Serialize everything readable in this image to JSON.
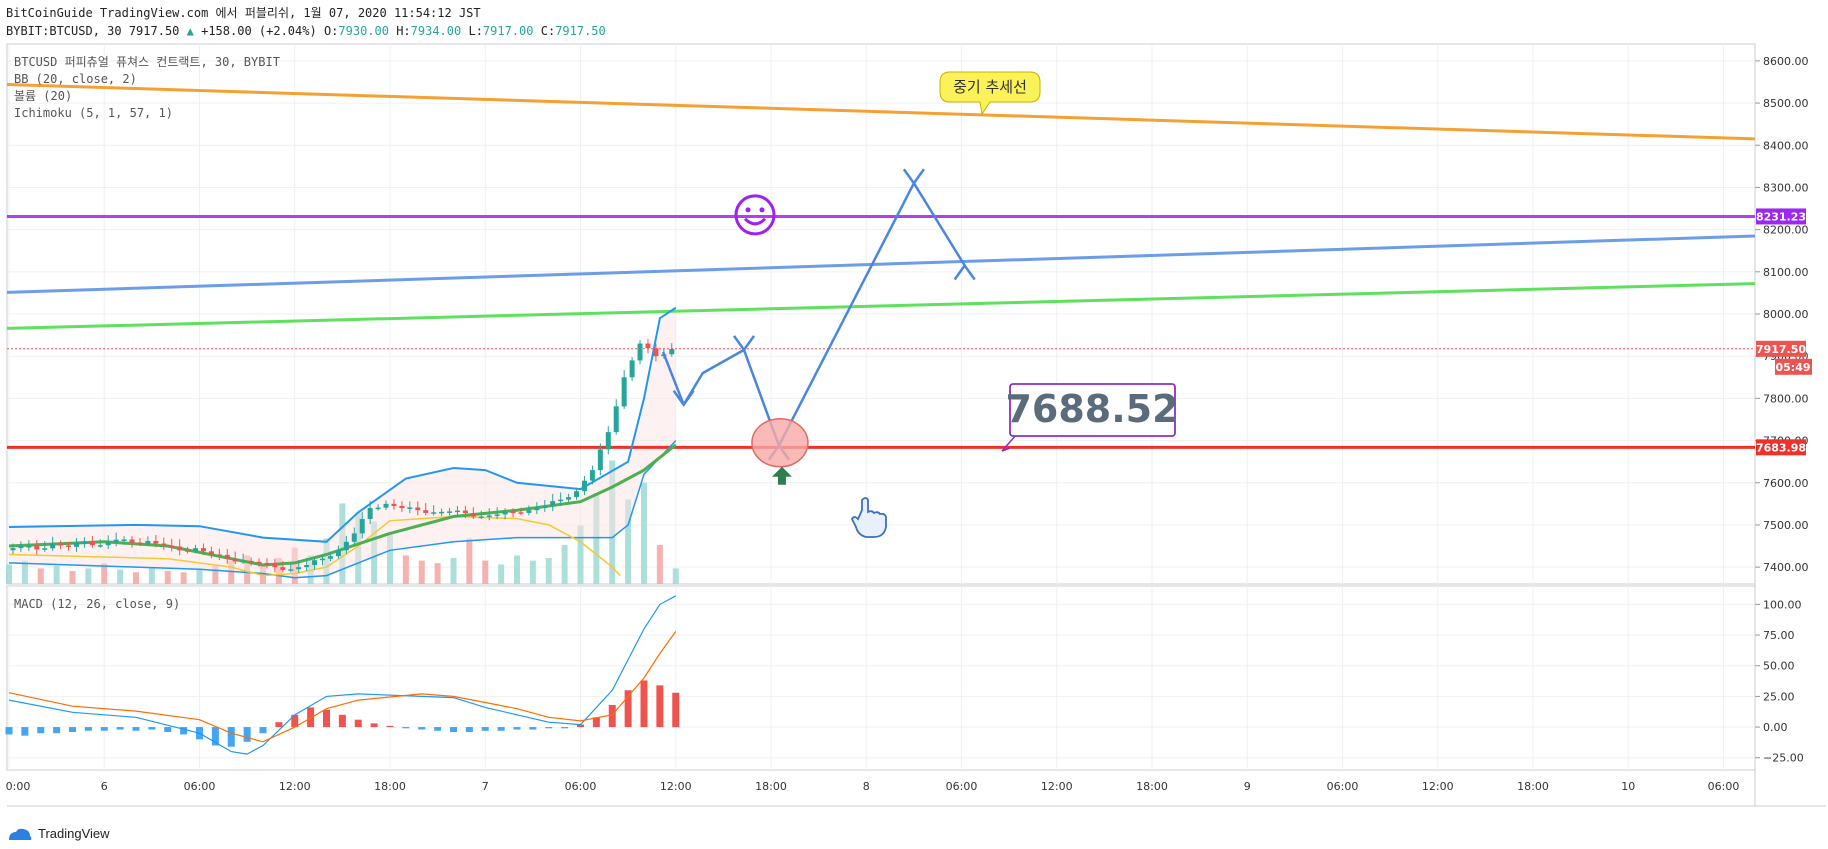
{
  "header": {
    "line1": "BitCoinGuide TradingView.com 에서 퍼블리쉬, 1월 07, 2020 11:54:12 JST",
    "symbol": "BYBIT:BTCUSD, 30",
    "last": "7917.50",
    "change_arrow": "▲",
    "change": "+158.00 (+2.04%)",
    "o_label": "O:",
    "o": "7930.00",
    "h_label": "H:",
    "h": "7934.00",
    "l_label": "L:",
    "l": "7917.00",
    "c_label": "C:",
    "c": "7917.50"
  },
  "legend": {
    "title": "BTCUSD 퍼피츄얼 퓨쳐스 컨트랙트, 30, BYBIT",
    "bb": "BB (20, close, 2)",
    "volume": "볼륨 (20)",
    "ichimoku": "Ichimoku (5, 1, 57, 1)",
    "macd": "MACD (12, 26, close, 9)"
  },
  "annotations": {
    "trend_label": "중기 추세선",
    "price_callout": "7688.52",
    "smiley_icon": "smiley-face",
    "hand_icon": "pointing-hand"
  },
  "badges": {
    "purple_level": "8231.23",
    "last_price": "7917.50",
    "countdown": "05:49",
    "red_level": "7683.98"
  },
  "footer": {
    "brand": "TradingView"
  },
  "colors": {
    "up": "#26a69a",
    "down": "#ef5350",
    "bb": "#2196f3",
    "ma": "#4caf50",
    "trend_orange": "#f5a033",
    "trend_purple": "#b040f0",
    "trend_blue": "#6d9de6",
    "trend_green": "#5fe05f",
    "support_red": "#f0302a",
    "arrow": "#4a86e0",
    "macd": "#2196f3",
    "signal": "#ff6d00"
  },
  "chart_data": [
    {
      "type": "candlestick",
      "title": "BTCUSD 퍼피츄얼 퓨쳐스 컨트랙트, 30, BYBIT",
      "ylim": [
        7360,
        8640
      ],
      "y_ticks": [
        8600,
        8500,
        8400,
        8300,
        8200,
        8100,
        8000,
        7900,
        7800,
        7700,
        7600,
        7500,
        7400
      ],
      "y_tick_labels": [
        "8600.00",
        "8500.00",
        "8400.00",
        "8300.00",
        "8200.00",
        "8100.00",
        "8000.00",
        "7900.00",
        "7800.00",
        "7700.00",
        "7600.00",
        "7500.00",
        "7400.00"
      ],
      "x_ticks": [
        "0:00",
        "6",
        "06:00",
        "12:00",
        "18:00",
        "7",
        "06:00",
        "12:00",
        "18:00",
        "8",
        "06:00",
        "12:00",
        "18:00",
        "9",
        "06:00",
        "12:00",
        "18:00",
        "10",
        "06:00"
      ],
      "x_tick_hours": [
        0,
        6,
        12,
        18,
        24,
        30,
        36,
        42,
        48,
        54,
        60,
        66,
        72,
        78,
        84,
        90,
        96,
        102,
        108
      ],
      "last_hour": 42,
      "price_path": [
        [
          0,
          7440
        ],
        [
          1,
          7450
        ],
        [
          2,
          7442
        ],
        [
          3,
          7455
        ],
        [
          4,
          7448
        ],
        [
          5,
          7460
        ],
        [
          6,
          7452
        ],
        [
          7,
          7465
        ],
        [
          8,
          7458
        ],
        [
          9,
          7462
        ],
        [
          10,
          7450
        ],
        [
          11,
          7440
        ],
        [
          12,
          7445
        ],
        [
          13,
          7430
        ],
        [
          14,
          7420
        ],
        [
          15,
          7415
        ],
        [
          16,
          7410
        ],
        [
          17,
          7400
        ],
        [
          18,
          7395
        ],
        [
          19,
          7405
        ],
        [
          20,
          7420
        ],
        [
          21,
          7440
        ],
        [
          22,
          7480
        ],
        [
          23,
          7540
        ],
        [
          24,
          7550
        ],
        [
          25,
          7540
        ],
        [
          26,
          7535
        ],
        [
          27,
          7530
        ],
        [
          28,
          7532
        ],
        [
          29,
          7528
        ],
        [
          30,
          7520
        ],
        [
          31,
          7525
        ],
        [
          32,
          7530
        ],
        [
          33,
          7535
        ],
        [
          34,
          7545
        ],
        [
          35,
          7560
        ],
        [
          36,
          7580
        ],
        [
          37,
          7630
        ],
        [
          38,
          7720
        ],
        [
          39,
          7850
        ],
        [
          40,
          7930
        ],
        [
          41,
          7900
        ],
        [
          42,
          7917
        ]
      ],
      "bb_upper": [
        [
          0,
          7495
        ],
        [
          8,
          7500
        ],
        [
          12,
          7497
        ],
        [
          16,
          7470
        ],
        [
          20,
          7460
        ],
        [
          22,
          7530
        ],
        [
          25,
          7610
        ],
        [
          28,
          7635
        ],
        [
          30,
          7630
        ],
        [
          32,
          7600
        ],
        [
          36,
          7585
        ],
        [
          39,
          7650
        ],
        [
          40,
          7800
        ],
        [
          41,
          7990
        ],
        [
          42,
          8015
        ]
      ],
      "bb_lower": [
        [
          0,
          7410
        ],
        [
          8,
          7400
        ],
        [
          12,
          7395
        ],
        [
          16,
          7385
        ],
        [
          18,
          7375
        ],
        [
          20,
          7380
        ],
        [
          22,
          7410
        ],
        [
          24,
          7440
        ],
        [
          28,
          7460
        ],
        [
          32,
          7470
        ],
        [
          36,
          7470
        ],
        [
          38,
          7470
        ],
        [
          39,
          7500
        ],
        [
          40,
          7620
        ],
        [
          42,
          7700
        ]
      ],
      "ma": [
        [
          0,
          7450
        ],
        [
          6,
          7460
        ],
        [
          10,
          7450
        ],
        [
          14,
          7420
        ],
        [
          16,
          7405
        ],
        [
          18,
          7410
        ],
        [
          20,
          7430
        ],
        [
          24,
          7480
        ],
        [
          28,
          7520
        ],
        [
          32,
          7535
        ],
        [
          36,
          7555
        ],
        [
          38,
          7590
        ],
        [
          40,
          7630
        ],
        [
          41,
          7660
        ],
        [
          42,
          7690
        ]
      ],
      "ichimoku_lagging": [
        [
          0,
          7430
        ],
        [
          10,
          7420
        ],
        [
          14,
          7400
        ],
        [
          16,
          7380
        ],
        [
          18,
          7385
        ],
        [
          20,
          7400
        ],
        [
          22,
          7450
        ],
        [
          24,
          7510
        ],
        [
          28,
          7520
        ],
        [
          32,
          7515
        ],
        [
          34,
          7500
        ],
        [
          36,
          7460
        ],
        [
          37,
          7430
        ],
        [
          38,
          7400
        ],
        [
          38.5,
          7380
        ]
      ],
      "volume": [
        [
          0,
          15
        ],
        [
          1,
          18
        ],
        [
          2,
          12
        ],
        [
          3,
          14
        ],
        [
          4,
          10
        ],
        [
          5,
          12
        ],
        [
          6,
          16
        ],
        [
          7,
          11
        ],
        [
          8,
          9
        ],
        [
          9,
          13
        ],
        [
          10,
          10
        ],
        [
          11,
          9
        ],
        [
          12,
          12
        ],
        [
          13,
          14
        ],
        [
          14,
          18
        ],
        [
          15,
          22
        ],
        [
          16,
          15
        ],
        [
          17,
          20
        ],
        [
          18,
          28
        ],
        [
          19,
          22
        ],
        [
          20,
          35
        ],
        [
          21,
          62
        ],
        [
          22,
          55
        ],
        [
          23,
          48
        ],
        [
          24,
          38
        ],
        [
          25,
          22
        ],
        [
          26,
          18
        ],
        [
          27,
          16
        ],
        [
          28,
          20
        ],
        [
          29,
          35
        ],
        [
          30,
          18
        ],
        [
          31,
          15
        ],
        [
          32,
          22
        ],
        [
          33,
          18
        ],
        [
          34,
          20
        ],
        [
          35,
          30
        ],
        [
          36,
          45
        ],
        [
          37,
          70
        ],
        [
          38,
          95
        ],
        [
          39,
          65
        ],
        [
          40,
          78
        ],
        [
          41,
          30
        ],
        [
          42,
          12
        ]
      ],
      "trendlines": [
        {
          "name": "중기 추세선",
          "from": [
            -1,
            8545
          ],
          "to": [
            108,
            8415
          ]
        },
        {
          "name": "purple",
          "from": [
            -1,
            8231.23
          ],
          "to": [
            108,
            8231.23
          ]
        },
        {
          "name": "blue",
          "from": [
            -1,
            8050
          ],
          "to": [
            108,
            8185
          ]
        },
        {
          "name": "green",
          "from": [
            -1,
            7965
          ],
          "to": [
            108,
            8072
          ]
        },
        {
          "name": "red",
          "from": [
            -1,
            7683.98
          ],
          "to": [
            108,
            7683.98
          ]
        }
      ],
      "forecast_arrows": [
        [
          [
            41.2,
            7910
          ],
          [
            42.5,
            7785
          ],
          [
            43.7,
            7860
          ],
          [
            46.3,
            7915
          ],
          [
            48.5,
            7688
          ],
          [
            57,
            8310
          ],
          [
            60.2,
            8115
          ]
        ]
      ],
      "target_circle": [
        48.5,
        7690
      ]
    },
    {
      "type": "line",
      "title": "MACD (12, 26, close, 9)",
      "ylim": [
        -35,
        115
      ],
      "y_ticks": [
        100,
        75,
        50,
        25,
        0,
        -25
      ],
      "y_tick_labels": [
        "100.00",
        "75.00",
        "50.00",
        "25.00",
        "0.00",
        "−25.00"
      ],
      "series": [
        {
          "name": "MACD",
          "values": [
            [
              0,
              22
            ],
            [
              4,
              12
            ],
            [
              8,
              8
            ],
            [
              12,
              -5
            ],
            [
              14,
              -20
            ],
            [
              15,
              -22
            ],
            [
              16,
              -15
            ],
            [
              18,
              10
            ],
            [
              20,
              25
            ],
            [
              22,
              27
            ],
            [
              26,
              25
            ],
            [
              28,
              24
            ],
            [
              30,
              16
            ],
            [
              32,
              10
            ],
            [
              34,
              4
            ],
            [
              36,
              2
            ],
            [
              38,
              30
            ],
            [
              39,
              55
            ],
            [
              40,
              80
            ],
            [
              41,
              100
            ],
            [
              42,
              107
            ]
          ]
        },
        {
          "name": "Signal",
          "values": [
            [
              0,
              28
            ],
            [
              4,
              17
            ],
            [
              8,
              13
            ],
            [
              12,
              6
            ],
            [
              14,
              -5
            ],
            [
              16,
              -12
            ],
            [
              18,
              0
            ],
            [
              20,
              15
            ],
            [
              22,
              22
            ],
            [
              26,
              27
            ],
            [
              28,
              25
            ],
            [
              30,
              20
            ],
            [
              32,
              15
            ],
            [
              34,
              8
            ],
            [
              36,
              5
            ],
            [
              38,
              10
            ],
            [
              39,
              25
            ],
            [
              40,
              40
            ],
            [
              41,
              60
            ],
            [
              42,
              78
            ]
          ]
        }
      ],
      "histogram": [
        [
          0,
          -6
        ],
        [
          1,
          -7
        ],
        [
          2,
          -5
        ],
        [
          3,
          -5
        ],
        [
          4,
          -4
        ],
        [
          5,
          -3
        ],
        [
          6,
          -3
        ],
        [
          7,
          -2
        ],
        [
          8,
          -3
        ],
        [
          9,
          -2
        ],
        [
          10,
          -4
        ],
        [
          11,
          -6
        ],
        [
          12,
          -10
        ],
        [
          13,
          -15
        ],
        [
          14,
          -16
        ],
        [
          15,
          -12
        ],
        [
          16,
          -5
        ],
        [
          17,
          4
        ],
        [
          18,
          10
        ],
        [
          19,
          16
        ],
        [
          20,
          14
        ],
        [
          21,
          10
        ],
        [
          22,
          6
        ],
        [
          23,
          3
        ],
        [
          24,
          1
        ],
        [
          25,
          -1
        ],
        [
          26,
          -2
        ],
        [
          27,
          -3
        ],
        [
          28,
          -4
        ],
        [
          29,
          -4
        ],
        [
          30,
          -3
        ],
        [
          31,
          -3
        ],
        [
          32,
          -2
        ],
        [
          33,
          -2
        ],
        [
          34,
          -1
        ],
        [
          35,
          -1
        ],
        [
          36,
          2
        ],
        [
          37,
          8
        ],
        [
          38,
          18
        ],
        [
          39,
          30
        ],
        [
          40,
          38
        ],
        [
          41,
          34
        ],
        [
          42,
          28
        ]
      ]
    }
  ]
}
